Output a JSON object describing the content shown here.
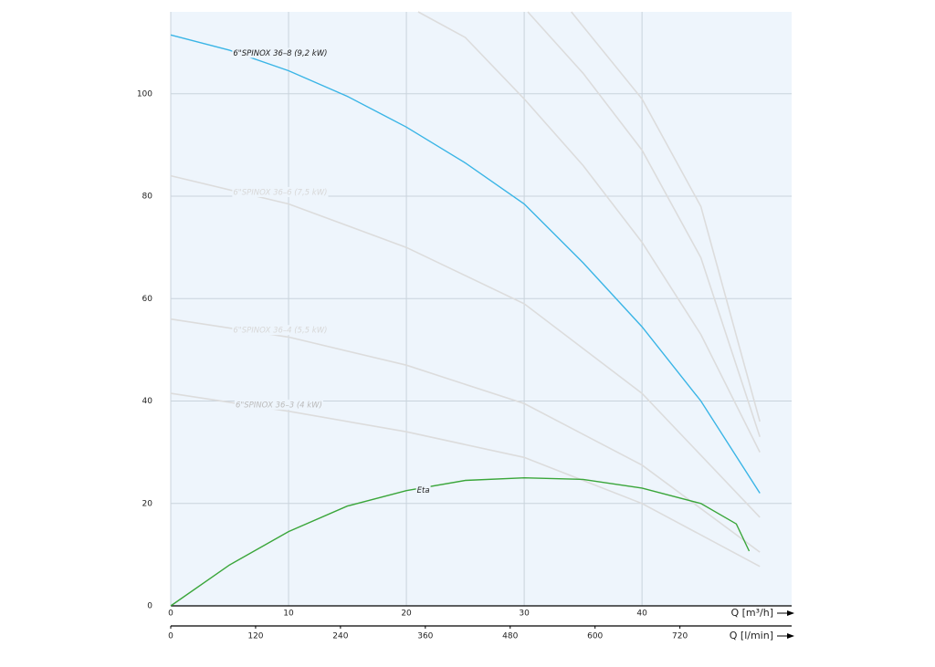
{
  "chart_data": {
    "type": "line",
    "xlim": [
      0,
      52.7
    ],
    "xticks": [
      0,
      10,
      20,
      30,
      40
    ],
    "xlabel": "Q [m³/h]",
    "x2lim": [
      0,
      878
    ],
    "x2ticks": [
      0,
      120,
      240,
      360,
      480,
      600,
      720
    ],
    "x2label": "Q [l/min]",
    "ylim": [
      0,
      116
    ],
    "yticks": [
      0,
      20,
      40,
      60,
      80,
      100
    ],
    "grid": true,
    "background": "#eef5fc",
    "series": [
      {
        "name": "6\"SPINOX 36–8 (9,2 kW)",
        "color": "#3ab5e6",
        "x": [
          0,
          5,
          10,
          15,
          20,
          25,
          30,
          35,
          40,
          45,
          50
        ],
        "values": [
          111.5,
          108.5,
          104.5,
          99.5,
          93.5,
          86.5,
          78.5,
          67,
          54.5,
          40,
          22
        ],
        "label_color": "#222"
      },
      {
        "name": "6\"SPINOX 36–6 (7,5 kW)",
        "color": "#dcdcdc",
        "x": [
          0,
          10,
          20,
          30,
          40,
          50
        ],
        "values": [
          84,
          78.5,
          70,
          59,
          41.5,
          17.3
        ],
        "label_color": "#d8d8d8"
      },
      {
        "name": "6\"SPINOX 36–4 (5,5 kW)",
        "color": "#dcdcdc",
        "x": [
          0,
          10,
          20,
          30,
          40,
          50
        ],
        "values": [
          56,
          52.5,
          47,
          39.5,
          27.5,
          10.5
        ],
        "label_color": "#d8d8d8"
      },
      {
        "name": "6\"SPINOX 36–3 (4 kW)",
        "color": "#dcdcdc",
        "x": [
          0,
          10,
          20,
          30,
          40,
          50
        ],
        "values": [
          41.5,
          38,
          34,
          29,
          20,
          7.7
        ],
        "label_color": "#bbbbbb"
      },
      {
        "color": "#dcdcdc",
        "x": [
          21,
          25,
          30,
          35,
          40,
          45,
          50
        ],
        "values": [
          116,
          111,
          99,
          86,
          71,
          53,
          30
        ]
      },
      {
        "color": "#dcdcdc",
        "x": [
          30.3,
          35,
          40,
          45,
          50
        ],
        "values": [
          116,
          104,
          89,
          68,
          33
        ]
      },
      {
        "color": "#dcdcdc",
        "x": [
          34,
          40,
          45,
          50
        ],
        "values": [
          116,
          99,
          78,
          36
        ]
      },
      {
        "name": "Eta",
        "color": "#3aa63a",
        "x": [
          0,
          5,
          10,
          15,
          20,
          25,
          30,
          35,
          40,
          45,
          48,
          49.1
        ],
        "values": [
          0,
          8,
          14.5,
          19.5,
          22.5,
          24.5,
          25,
          24.7,
          23,
          20,
          16,
          10.7
        ],
        "label_color": "#222"
      }
    ]
  }
}
